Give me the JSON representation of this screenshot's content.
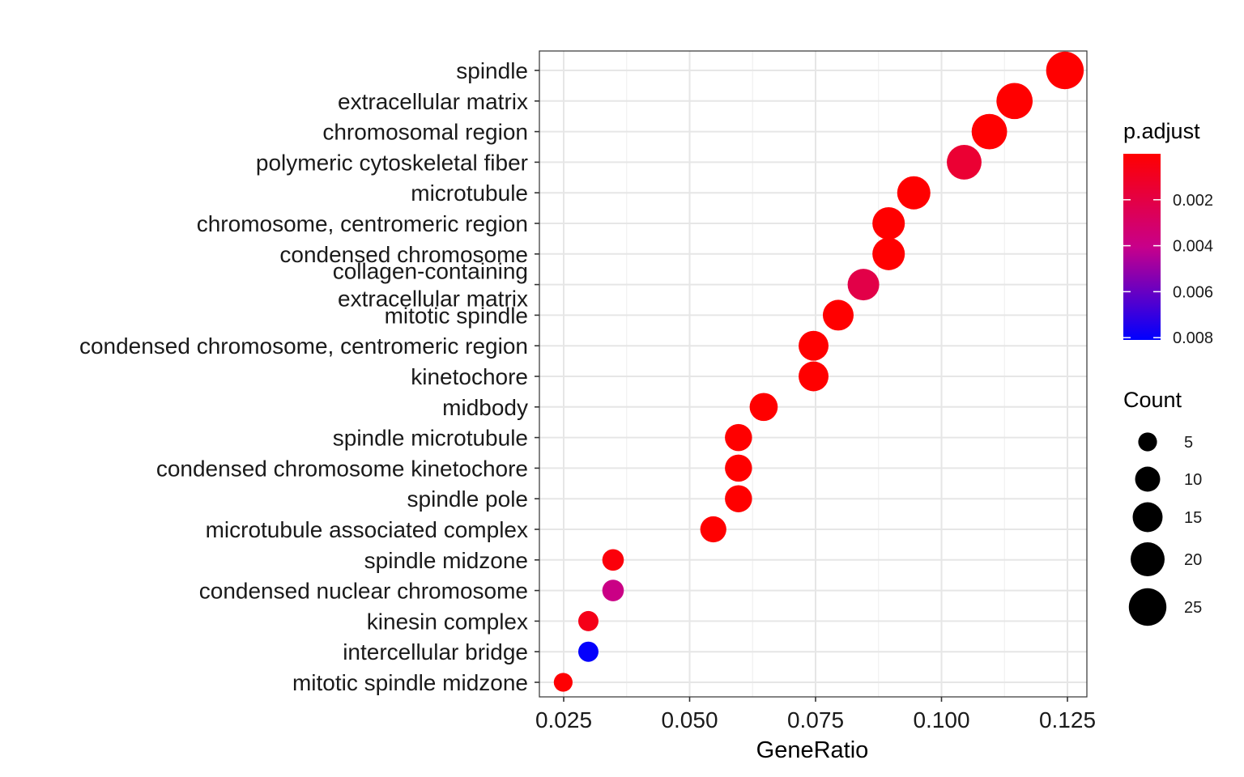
{
  "chart_data": {
    "type": "scatter",
    "xlabel": "GeneRatio",
    "ylabel": "",
    "xlim": [
      0.02,
      0.129
    ],
    "x_ticks": [
      "0.025",
      "0.050",
      "0.075",
      "0.100",
      "0.125"
    ],
    "grid": true,
    "legend_position": "right",
    "color_legend": {
      "title": "p.adjust",
      "low_color": "#ff0000",
      "high_color": "#0000ff",
      "range": [
        0.0,
        0.0081
      ],
      "tick_labels": [
        "0.002",
        "0.004",
        "0.006",
        "0.008"
      ],
      "tick_values": [
        0.002,
        0.004,
        0.006,
        0.008
      ]
    },
    "size_legend": {
      "title": "Count",
      "labels": [
        "5",
        "10",
        "15",
        "20",
        "25"
      ],
      "values": [
        5,
        10,
        15,
        20,
        25
      ]
    },
    "points": [
      {
        "term": "spindle",
        "label_lines": [
          "spindle"
        ],
        "gene_ratio": 0.1245,
        "count": 25,
        "p_adjust": 0.0
      },
      {
        "term": "extracellular matrix",
        "label_lines": [
          "extracellular matrix"
        ],
        "gene_ratio": 0.1145,
        "count": 23,
        "p_adjust": 0.0
      },
      {
        "term": "chromosomal region",
        "label_lines": [
          "chromosomal region"
        ],
        "gene_ratio": 0.1095,
        "count": 22,
        "p_adjust": 0.0
      },
      {
        "term": "polymeric cytoskeletal fiber",
        "label_lines": [
          "polymeric cytoskeletal fiber"
        ],
        "gene_ratio": 0.1045,
        "count": 21,
        "p_adjust": 0.0015
      },
      {
        "term": "microtubule",
        "label_lines": [
          "microtubule"
        ],
        "gene_ratio": 0.0945,
        "count": 19,
        "p_adjust": 0.0
      },
      {
        "term": "chromosome, centromeric region",
        "label_lines": [
          "chromosome, centromeric region"
        ],
        "gene_ratio": 0.0895,
        "count": 18,
        "p_adjust": 0.0
      },
      {
        "term": "condensed chromosome",
        "label_lines": [
          "condensed chromosome"
        ],
        "gene_ratio": 0.0895,
        "count": 18,
        "p_adjust": 0.0
      },
      {
        "term": "collagen-containing extracellular matrix",
        "label_lines": [
          "collagen-containing",
          "extracellular matrix"
        ],
        "gene_ratio": 0.0845,
        "count": 17,
        "p_adjust": 0.0021
      },
      {
        "term": "mitotic spindle",
        "label_lines": [
          "mitotic spindle"
        ],
        "gene_ratio": 0.0795,
        "count": 16,
        "p_adjust": 0.0
      },
      {
        "term": "condensed chromosome, centromeric region",
        "label_lines": [
          "condensed chromosome, centromeric region"
        ],
        "gene_ratio": 0.0746,
        "count": 15,
        "p_adjust": 0.0
      },
      {
        "term": "kinetochore",
        "label_lines": [
          "kinetochore"
        ],
        "gene_ratio": 0.0746,
        "count": 15,
        "p_adjust": 0.0
      },
      {
        "term": "midbody",
        "label_lines": [
          "midbody"
        ],
        "gene_ratio": 0.0647,
        "count": 13,
        "p_adjust": 0.0
      },
      {
        "term": "spindle microtubule",
        "label_lines": [
          "spindle microtubule"
        ],
        "gene_ratio": 0.0597,
        "count": 12,
        "p_adjust": 0.0
      },
      {
        "term": "condensed chromosome kinetochore",
        "label_lines": [
          "condensed chromosome kinetochore"
        ],
        "gene_ratio": 0.0597,
        "count": 12,
        "p_adjust": 0.0
      },
      {
        "term": "spindle pole",
        "label_lines": [
          "spindle pole"
        ],
        "gene_ratio": 0.0597,
        "count": 12,
        "p_adjust": 0.0
      },
      {
        "term": "microtubule associated complex",
        "label_lines": [
          "microtubule associated complex"
        ],
        "gene_ratio": 0.0547,
        "count": 11,
        "p_adjust": 0.0
      },
      {
        "term": "spindle midzone",
        "label_lines": [
          "spindle midzone"
        ],
        "gene_ratio": 0.0348,
        "count": 7,
        "p_adjust": 0.0003
      },
      {
        "term": "condensed nuclear chromosome",
        "label_lines": [
          "condensed nuclear chromosome"
        ],
        "gene_ratio": 0.0348,
        "count": 7,
        "p_adjust": 0.0039
      },
      {
        "term": "kinesin complex",
        "label_lines": [
          "kinesin complex"
        ],
        "gene_ratio": 0.0299,
        "count": 6,
        "p_adjust": 0.0007
      },
      {
        "term": "intercellular bridge",
        "label_lines": [
          "intercellular bridge"
        ],
        "gene_ratio": 0.0299,
        "count": 6,
        "p_adjust": 0.008
      },
      {
        "term": "mitotic spindle midzone",
        "label_lines": [
          "mitotic spindle midzone"
        ],
        "gene_ratio": 0.0249,
        "count": 5,
        "p_adjust": 0.0001
      }
    ]
  }
}
